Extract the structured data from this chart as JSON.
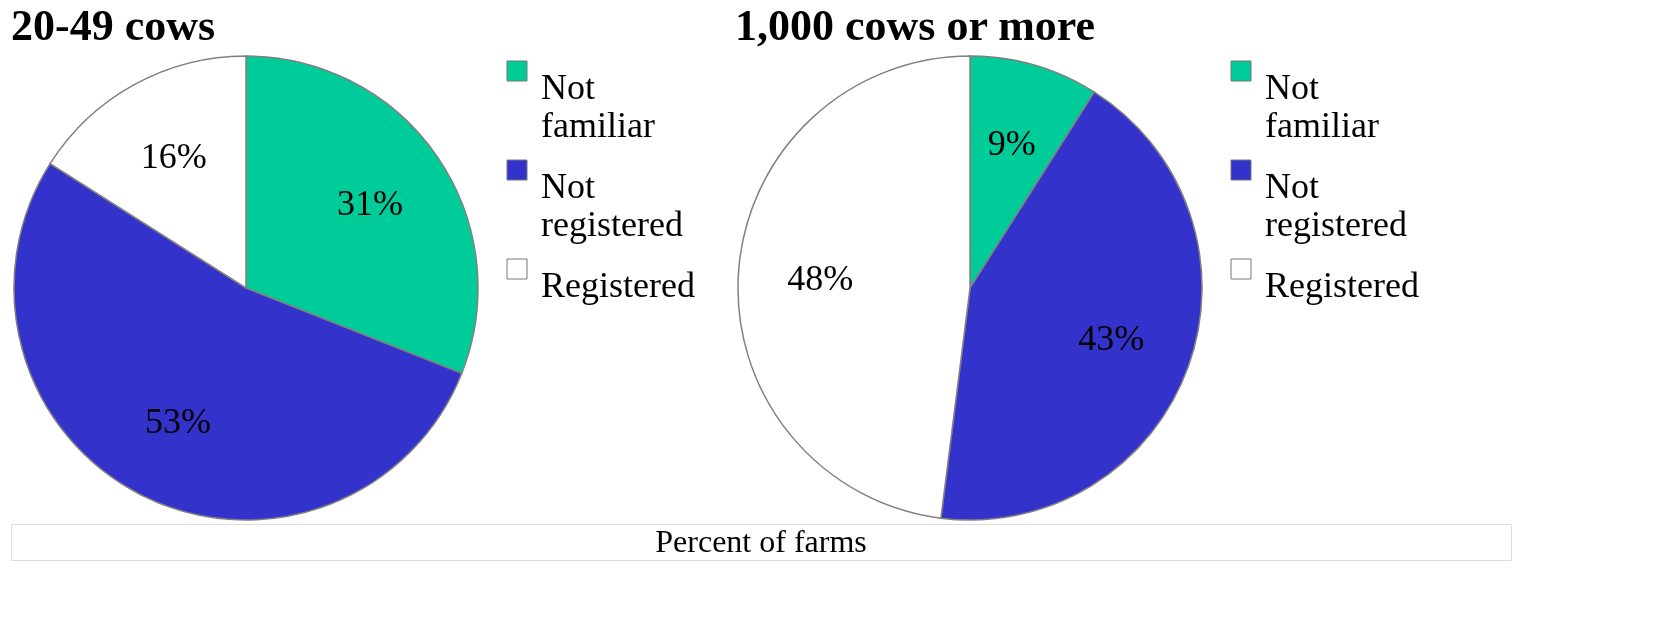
{
  "chart_data": [
    {
      "type": "pie",
      "title": "20-49 cows",
      "categories": [
        "Not familiar",
        "Not registered",
        "Registered"
      ],
      "values": [
        31,
        53,
        16
      ],
      "colors": [
        "#00cc99",
        "#3333cc",
        "#ffffff"
      ],
      "value_labels": [
        "31%",
        "53%",
        "16%"
      ],
      "legend": "right"
    },
    {
      "type": "pie",
      "title": "1,000 cows or more",
      "categories": [
        "Not familiar",
        "Not registered",
        "Registered"
      ],
      "values": [
        9,
        43,
        48
      ],
      "colors": [
        "#00cc99",
        "#3333cc",
        "#ffffff"
      ],
      "value_labels": [
        "9%",
        "43%",
        "48%"
      ],
      "legend": "right",
      "annotations": [
        "Percent of farms"
      ]
    }
  ]
}
